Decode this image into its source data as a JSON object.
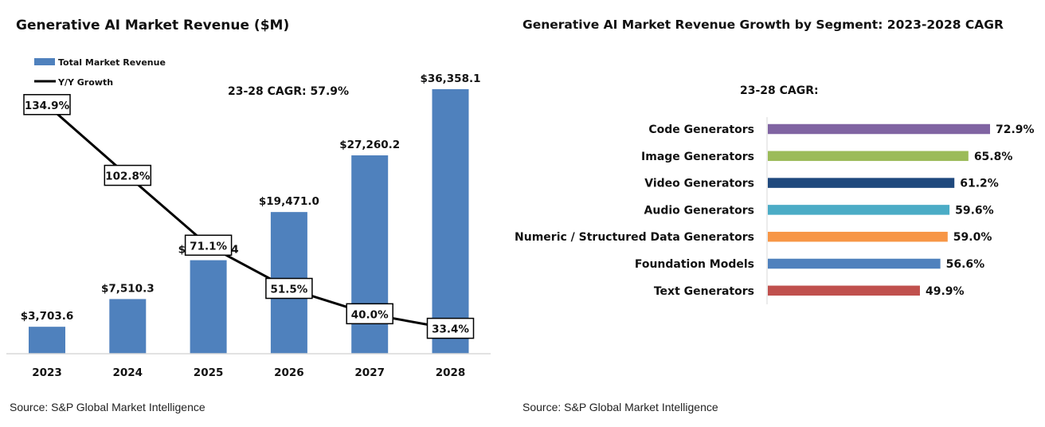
{
  "left_chart": {
    "title": "Generative AI Market Revenue ($M)",
    "legend_bar": "Total Market Revenue",
    "legend_line": "Y/Y Growth",
    "cagr_annotation": "23-28 CAGR:  57.9%",
    "source": "Source: S&P Global Market Intelligence",
    "bar_color": "#4f81bd"
  },
  "right_chart": {
    "title": "Generative AI Market Revenue Growth by Segment: 2023-2028 CAGR",
    "cagr_header": "23-28 CAGR:",
    "source": "Source: S&P Global Market Intelligence"
  },
  "chart_data": [
    {
      "type": "bar",
      "title": "Generative AI Market Revenue ($M)",
      "categories": [
        "2023",
        "2024",
        "2025",
        "2026",
        "2027",
        "2028"
      ],
      "series": [
        {
          "name": "Total Market Revenue",
          "type": "bar",
          "values": [
            3703.6,
            7510.3,
            12852.4,
            19471.0,
            27260.2,
            36358.1
          ],
          "labels": [
            "$3,703.6",
            "$7,510.3",
            "$12,852.4",
            "$19,471.0",
            "$27,260.2",
            "$36,358.1"
          ],
          "color": "#4f81bd"
        },
        {
          "name": "Y/Y Growth",
          "type": "line",
          "values": [
            134.9,
            102.8,
            71.1,
            51.5,
            40.0,
            33.4
          ],
          "labels": [
            "134.9%",
            "102.8%",
            "71.1%",
            "51.5%",
            "40.0%",
            "33.4%"
          ],
          "color": "#000000"
        }
      ],
      "ylim": [
        0,
        38000
      ],
      "annotation": "23-28 CAGR:  57.9%",
      "legend": "top-left",
      "grid": false
    },
    {
      "type": "bar",
      "orientation": "horizontal",
      "title": "Generative AI Market Revenue Growth by Segment: 2023-2028 CAGR",
      "subtitle": "23-28 CAGR:",
      "categories": [
        "Code Generators",
        "Image Generators",
        "Video Generators",
        "Audio Generators",
        "Numeric / Structured Data Generators",
        "Foundation Models",
        "Text Generators"
      ],
      "values": [
        72.9,
        65.8,
        61.2,
        59.6,
        59.0,
        56.6,
        49.9
      ],
      "labels": [
        "72.9%",
        "65.8%",
        "61.2%",
        "59.6%",
        "59.0%",
        "56.6%",
        "49.9%"
      ],
      "colors": [
        "#8064a2",
        "#9bbb59",
        "#1f497d",
        "#4bacc6",
        "#f79646",
        "#4f81bd",
        "#c0504d"
      ],
      "xlim": [
        0,
        80
      ],
      "grid": false
    }
  ]
}
